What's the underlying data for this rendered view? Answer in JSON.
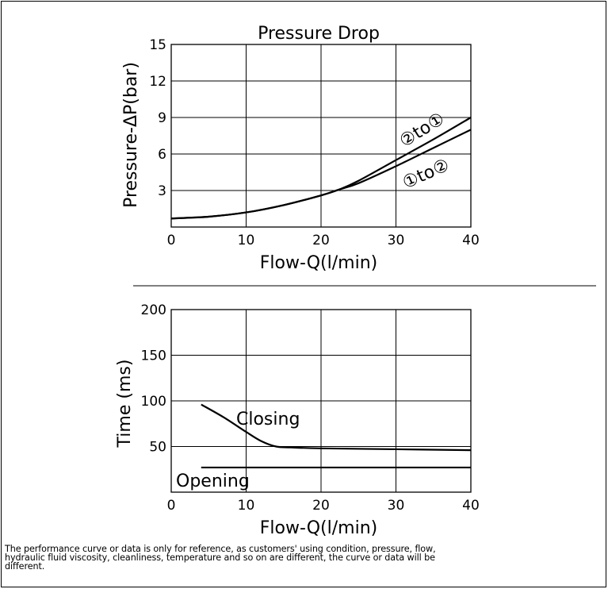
{
  "chart_data": [
    {
      "type": "line",
      "title": "Pressure Drop",
      "xlabel": "Flow-Q(l/min)",
      "ylabel": "Pressure-ΔP(bar)",
      "xlim": [
        0,
        40
      ],
      "ylim": [
        0,
        15
      ],
      "xticks": [
        "0",
        "10",
        "20",
        "30",
        "40"
      ],
      "yticks": [
        "3",
        "6",
        "9",
        "12",
        "15"
      ],
      "grid": true,
      "series": [
        {
          "name": "②to①",
          "label": "②to①",
          "x": [
            0,
            5,
            10,
            15,
            20,
            22.5,
            25,
            30,
            35,
            40
          ],
          "y": [
            0.7,
            0.85,
            1.2,
            1.8,
            2.6,
            3.1,
            3.8,
            5.5,
            7.2,
            9.0
          ]
        },
        {
          "name": "①to②",
          "label": "①to②",
          "x": [
            0,
            5,
            10,
            15,
            20,
            22.5,
            25,
            30,
            35,
            40
          ],
          "y": [
            0.7,
            0.85,
            1.2,
            1.8,
            2.6,
            3.1,
            3.6,
            5.0,
            6.5,
            8.0
          ]
        }
      ]
    },
    {
      "type": "line",
      "title": "",
      "xlabel": "Flow-Q(l/min)",
      "ylabel": "Time (ms)",
      "xlim": [
        0,
        40
      ],
      "ylim": [
        0,
        200
      ],
      "xticks": [
        "0",
        "10",
        "20",
        "30",
        "40"
      ],
      "yticks": [
        "50",
        "100",
        "150",
        "200"
      ],
      "grid": true,
      "series": [
        {
          "name": "Closing",
          "label": "Closing",
          "x": [
            4,
            7,
            10,
            12,
            14,
            16,
            20,
            30,
            40
          ],
          "y": [
            96,
            82,
            66,
            56,
            50,
            49,
            48,
            47,
            46
          ]
        },
        {
          "name": "Opening",
          "label": "Opening",
          "x": [
            4,
            40
          ],
          "y": [
            27,
            27
          ]
        }
      ]
    }
  ],
  "note_lines": [
    "The performance curve or data is only for reference, as customers' using condition, pressure, flow,",
    "hydraulic fluid viscosity, cleanliness, temperature and so on are different, the curve or data will be",
    "different."
  ]
}
